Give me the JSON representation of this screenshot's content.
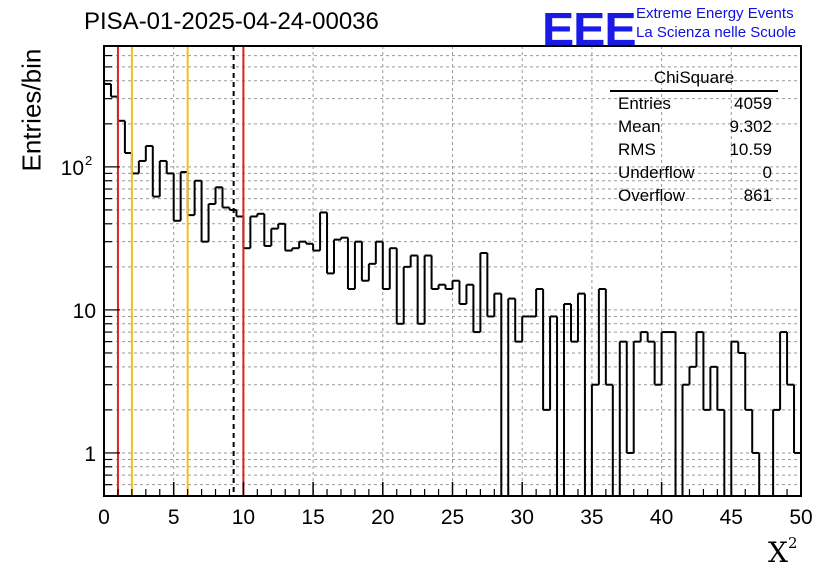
{
  "header": {
    "run_title": "PISA-01-2025-04-24-00036",
    "logo": "EEE",
    "logo_line1": "Extreme Energy Events",
    "logo_line2": "La Scienza nelle Scuole"
  },
  "stats_box": {
    "title": "ChiSquare",
    "rows": [
      {
        "label": "Entries",
        "value": "4059"
      },
      {
        "label": "Mean",
        "value": "9.302"
      },
      {
        "label": "RMS",
        "value": "10.59"
      },
      {
        "label": "Underflow",
        "value": "0"
      },
      {
        "label": "Overflow",
        "value": "861"
      }
    ]
  },
  "colors": {
    "red_line": "#e02020",
    "yellow_line": "#f0c020",
    "black_line": "#000000",
    "grid": "#9a9a9a",
    "logo": "#1a1ae6"
  },
  "chart_data": {
    "type": "histogram",
    "title": "PISA-01-2025-04-24-00036",
    "xlabel": "X",
    "xlabel_superscript": "2",
    "ylabel": "Entries/bin",
    "xlim": [
      0,
      50
    ],
    "ylim": [
      0.5,
      700
    ],
    "yscale": "log",
    "grid": true,
    "bin_width": 0.5,
    "x_ticks": [
      "0",
      "5",
      "10",
      "15",
      "20",
      "25",
      "30",
      "35",
      "40",
      "45",
      "50"
    ],
    "y_ticks": [
      {
        "value": 1,
        "label": "1"
      },
      {
        "value": 10,
        "label": "10"
      },
      {
        "value": 100,
        "label": "10",
        "sup": "2"
      }
    ],
    "bin_values": [
      380,
      310,
      210,
      125,
      90,
      110,
      140,
      62,
      110,
      90,
      42,
      92,
      46,
      80,
      30,
      55,
      72,
      52,
      50,
      45,
      27,
      45,
      47,
      28,
      37,
      40,
      26,
      27,
      30,
      29,
      26,
      48,
      18,
      31,
      32,
      14,
      30,
      16,
      21,
      30,
      14,
      27,
      8,
      20,
      24,
      8,
      24,
      14,
      15,
      14,
      16,
      11,
      15,
      7,
      25,
      9,
      13,
      0.1,
      12,
      6,
      9,
      9,
      14,
      2,
      9,
      0.1,
      11,
      6,
      13,
      0.1,
      3,
      14,
      3,
      0.1,
      6,
      1,
      6,
      7,
      6,
      3,
      7,
      7,
      0.1,
      3,
      4,
      7,
      2,
      4,
      2,
      0.1,
      6,
      5,
      2,
      1,
      0.1,
      0.1,
      2,
      7,
      3,
      1
    ],
    "vertical_lines": [
      {
        "x": 1.0,
        "color": "red",
        "style": "solid"
      },
      {
        "x": 2.0,
        "color": "yellow",
        "style": "solid"
      },
      {
        "x": 6.0,
        "color": "yellow",
        "style": "solid"
      },
      {
        "x": 9.3,
        "color": "black",
        "style": "dashed"
      },
      {
        "x": 10.0,
        "color": "red",
        "style": "solid"
      }
    ],
    "stats": {
      "Entries": 4059,
      "Mean": 9.302,
      "RMS": 10.59,
      "Underflow": 0,
      "Overflow": 861
    }
  }
}
